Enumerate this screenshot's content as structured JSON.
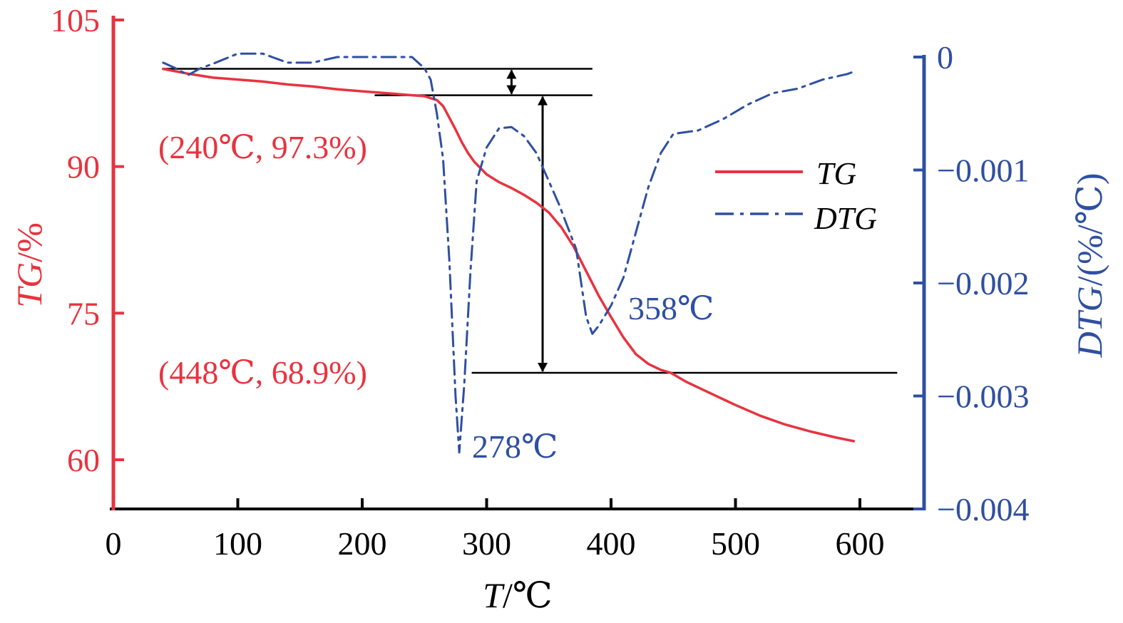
{
  "chart_data": {
    "type": "line",
    "x_axis": {
      "label_var": "T",
      "label_unit": "/℃",
      "range": [
        0,
        640
      ],
      "ticks": [
        0,
        100,
        200,
        300,
        400,
        500,
        600
      ],
      "tick_labels": [
        "0",
        "100",
        "200",
        "300",
        "400",
        "500",
        "600"
      ]
    },
    "y_axis_left": {
      "label_var": "TG",
      "label_unit": "/%",
      "color": "#e8333f",
      "range": [
        55,
        105
      ],
      "ticks": [
        105,
        90,
        75,
        60
      ],
      "tick_labels": [
        "105",
        "90",
        "75",
        "60"
      ]
    },
    "y_axis_right": {
      "label_var": "DTG",
      "label_unit": "/(%/℃)",
      "color": "#2f4fa2",
      "range": [
        -0.004,
        0.0001
      ],
      "ticks": [
        0,
        -0.001,
        -0.002,
        -0.003,
        -0.004
      ],
      "tick_labels": [
        "0",
        "−0.001",
        "−0.002",
        "−0.003",
        "−0.004"
      ]
    },
    "series": [
      {
        "name": "TG",
        "color": "#e8333f",
        "axis": "left",
        "style": "solid",
        "x": [
          40,
          60,
          80,
          100,
          120,
          140,
          160,
          180,
          200,
          220,
          240,
          250,
          260,
          265,
          270,
          275,
          280,
          285,
          290,
          300,
          310,
          320,
          330,
          340,
          350,
          360,
          370,
          380,
          390,
          400,
          410,
          420,
          430,
          440,
          448,
          460,
          480,
          500,
          520,
          540,
          560,
          580,
          595
        ],
        "y": [
          100,
          99.5,
          99.1,
          98.9,
          98.7,
          98.4,
          98.2,
          97.9,
          97.7,
          97.5,
          97.3,
          97.2,
          96.8,
          96.2,
          95.0,
          93.8,
          92.5,
          91.4,
          90.5,
          89.2,
          88.4,
          87.8,
          87.1,
          86.3,
          85.3,
          83.8,
          81.8,
          79.3,
          76.8,
          74.6,
          72.5,
          70.8,
          69.8,
          69.2,
          68.9,
          68.0,
          66.8,
          65.6,
          64.5,
          63.6,
          62.9,
          62.3,
          61.9
        ]
      },
      {
        "name": "DTG",
        "color": "#2f4fa2",
        "axis": "right",
        "style": "dash-dot",
        "x": [
          40,
          50,
          60,
          70,
          80,
          100,
          120,
          140,
          160,
          180,
          200,
          220,
          240,
          250,
          255,
          260,
          265,
          270,
          275,
          278,
          282,
          287,
          292,
          300,
          310,
          320,
          330,
          340,
          350,
          358,
          365,
          372,
          380,
          385,
          390,
          400,
          410,
          420,
          430,
          440,
          450,
          470,
          490,
          510,
          530,
          550,
          570,
          590,
          595
        ],
        "y": [
          -5e-05,
          -0.0001,
          -0.00016,
          -0.0001,
          -6e-05,
          3e-05,
          3e-05,
          -5e-05,
          -5e-05,
          0.0,
          0.0,
          0.0,
          0.0,
          -0.0001,
          -0.0002,
          -0.0005,
          -0.0009,
          -0.0018,
          -0.003,
          -0.0035,
          -0.0029,
          -0.0019,
          -0.0011,
          -0.0008,
          -0.00063,
          -0.00062,
          -0.0007,
          -0.00085,
          -0.0011,
          -0.0013,
          -0.0015,
          -0.0017,
          -0.0023,
          -0.00245,
          -0.00238,
          -0.0022,
          -0.00195,
          -0.00155,
          -0.00115,
          -0.00085,
          -0.00068,
          -0.00065,
          -0.00055,
          -0.00042,
          -0.00032,
          -0.00028,
          -0.0002,
          -0.00015,
          -0.00013
        ]
      }
    ],
    "reference_lines": [
      {
        "x_from": 40,
        "x_to": 385,
        "y": 100.0
      },
      {
        "x_from": 210,
        "x_to": 385,
        "y": 97.3
      },
      {
        "x_from": 288,
        "x_to": 630,
        "y": 68.9
      }
    ],
    "arrows": [
      {
        "x": 320,
        "y_from": 100.0,
        "y_to": 97.3
      },
      {
        "x": 345,
        "y_from": 97.3,
        "y_to": 68.9
      }
    ],
    "annotations": [
      {
        "text": "(240℃, 97.3%)",
        "color": "#e8333f"
      },
      {
        "text": "(448℃, 68.9%)",
        "color": "#e8333f"
      },
      {
        "text": "278℃",
        "color": "#2f4fa2"
      },
      {
        "text": "358℃",
        "color": "#2f4fa2"
      }
    ],
    "legend": {
      "position": "right",
      "entries": [
        "TG",
        "DTG"
      ]
    }
  }
}
